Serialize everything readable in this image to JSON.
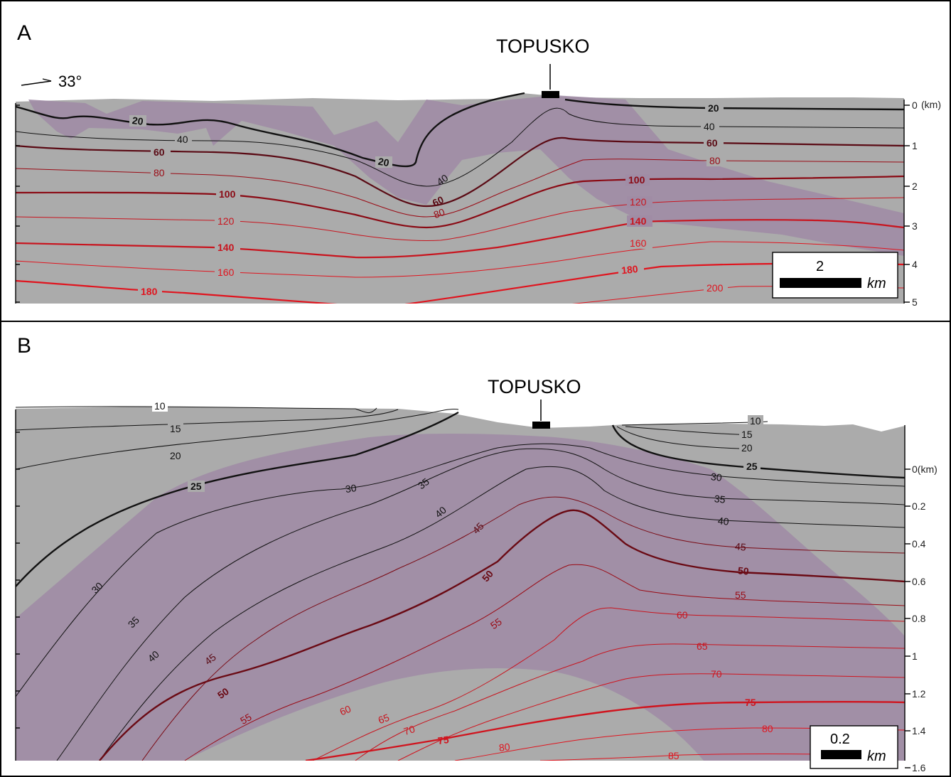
{
  "panel_a": {
    "letter": "A",
    "site": "TOPUSKO",
    "orientation": "33°",
    "depth_ticks": [
      "0",
      "1",
      "2",
      "3",
      "4",
      "5"
    ],
    "depth_unit": "(km)",
    "scale_value": "2",
    "scale_unit": "km",
    "contour_labels": {
      "t20a": "20",
      "t20b": "20",
      "t20c": "20",
      "t40a": "40",
      "t40b": "40",
      "t40c": "40",
      "t60a": "60",
      "t60b": "60",
      "t60c": "60",
      "t80a": "80",
      "t80b": "80",
      "t80c": "80",
      "t100a": "100",
      "t100b": "100",
      "t120a": "120",
      "t120b": "120",
      "t140a": "140",
      "t140b": "140",
      "t160a": "160",
      "t160b": "160",
      "t180a": "180",
      "t180b": "180",
      "t200": "200"
    }
  },
  "panel_b": {
    "letter": "B",
    "site": "TOPUSKO",
    "depth_ticks": [
      "0(km)",
      "0.2",
      "0.4",
      "0.6",
      "0.8",
      "1",
      "1.2",
      "1.4",
      "1.6"
    ],
    "scale_value": "0.2",
    "scale_unit": "km",
    "contour_labels": {
      "t10a": "10",
      "t10b": "10",
      "t15a": "15",
      "t15b": "15",
      "t20a": "20",
      "t20b": "20",
      "t25a": "25",
      "t25b": "25",
      "t30a": "30",
      "t30b": "30",
      "t30c": "30",
      "t35a": "35",
      "t35b": "35",
      "t35c": "35",
      "t40a": "40",
      "t40b": "40",
      "t40c": "40",
      "t45a": "45",
      "t45b": "45",
      "t45c": "45",
      "t50a": "50",
      "t50b": "50",
      "t50c": "50",
      "t55a": "55",
      "t55b": "55",
      "t55c": "55",
      "t60a": "60",
      "t60b": "60",
      "t65a": "65",
      "t65b": "65",
      "t70a": "70",
      "t70b": "70",
      "t75a": "75",
      "t75b": "75",
      "t80a": "80",
      "t80b": "80",
      "t85": "85"
    }
  },
  "colors": {
    "rock_gray": "#ababab",
    "anomaly_purple": "#a08ca5",
    "contour_black": "#111111",
    "contour_dark_red": "#5a0a14",
    "contour_red": "#e0141e"
  }
}
